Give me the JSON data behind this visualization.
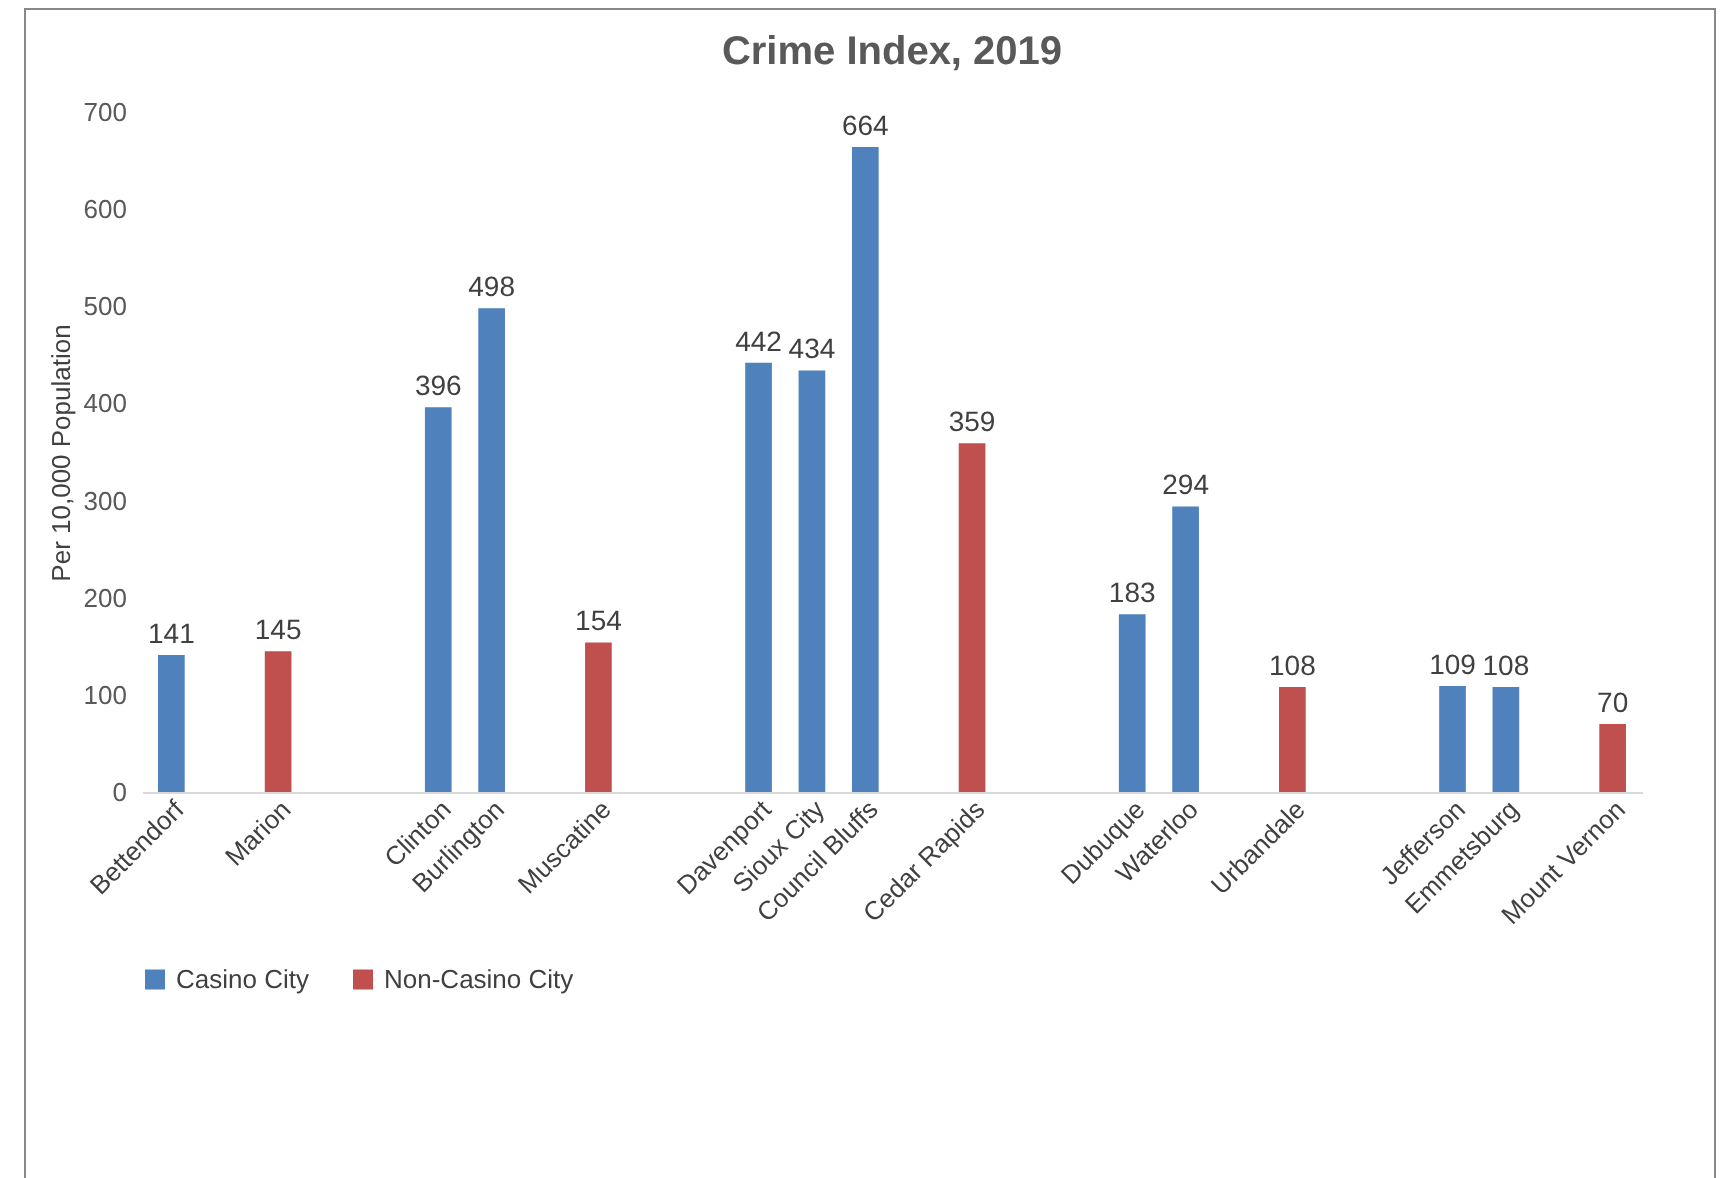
{
  "chart_data": {
    "type": "bar",
    "title": "Crime Index, 2019",
    "ylabel": "Per 10,000 Population",
    "categories": [
      "Bettendorf",
      null,
      "Marion",
      null,
      null,
      "Clinton",
      "Burlington",
      null,
      "Muscatine",
      null,
      null,
      "Davenport",
      "Sioux City",
      "Council Bluffs",
      null,
      "Cedar Rapids",
      null,
      null,
      "Dubuque",
      "Waterloo",
      null,
      "Urbandale",
      null,
      null,
      "Jefferson",
      "Emmetsburg",
      null,
      "Mount Vernon"
    ],
    "series": [
      {
        "name": "Casino City",
        "color": "#4f81bd",
        "values": [
          141,
          null,
          null,
          null,
          null,
          396,
          498,
          null,
          null,
          null,
          null,
          442,
          434,
          664,
          null,
          null,
          null,
          null,
          183,
          294,
          null,
          null,
          null,
          null,
          109,
          108,
          null,
          null
        ]
      },
      {
        "name": "Non-Casino City",
        "color": "#c0504d",
        "values": [
          null,
          null,
          145,
          null,
          null,
          null,
          null,
          null,
          154,
          null,
          null,
          null,
          null,
          null,
          null,
          359,
          null,
          null,
          null,
          null,
          null,
          108,
          null,
          null,
          null,
          null,
          null,
          70
        ]
      }
    ],
    "ylim": [
      0,
      700
    ],
    "yticks": [
      0,
      100,
      200,
      300,
      400,
      500,
      600,
      700
    ],
    "grid": false,
    "legend": "bottom",
    "data_labels": true
  }
}
